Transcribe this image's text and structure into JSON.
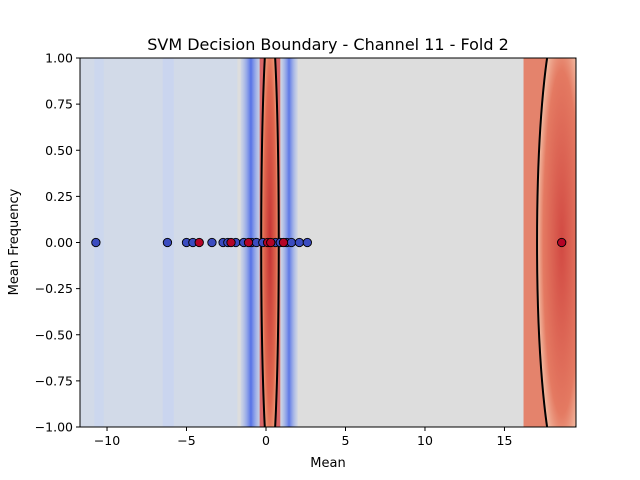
{
  "chart_data": {
    "type": "scatter",
    "title": "SVM Decision Boundary - Channel 11 - Fold 2",
    "xlabel": "Mean",
    "ylabel": "Mean Frequency",
    "xlim": [
      -11.7,
      19.5
    ],
    "ylim": [
      -1.0,
      1.0
    ],
    "x_ticks": [
      -10,
      -5,
      0,
      5,
      10,
      15
    ],
    "x_tick_labels": [
      "−10",
      "−5",
      "0",
      "5",
      "10",
      "15"
    ],
    "y_ticks": [
      -1.0,
      -0.75,
      -0.5,
      -0.25,
      0.0,
      0.25,
      0.5,
      0.75,
      1.0
    ],
    "y_tick_labels": [
      "−1.00",
      "−0.75",
      "−0.50",
      "−0.25",
      "0.00",
      "0.25",
      "0.50",
      "0.75",
      "1.00"
    ],
    "grid": false,
    "colors": {
      "class_0": "#3b4cc0",
      "class_1": "#b40426",
      "background": "#dddddd",
      "boundary": "#000000"
    },
    "decision_boundaries": [
      {
        "center_x": 0.25,
        "half_width": 0.55
      },
      {
        "center_x": 18.6,
        "half_width": 1.55
      }
    ],
    "background_bands": [
      {
        "x_from": -1.6,
        "x_to": -0.3,
        "color": "#4a6ff0",
        "opacity": 0.85
      },
      {
        "x_from": 0.9,
        "x_to": 2.0,
        "color": "#5a7ef5",
        "opacity": 0.8
      },
      {
        "x_from": -10.8,
        "x_to": -10.2,
        "color": "#c8d6f2",
        "opacity": 0.6
      },
      {
        "x_from": -6.5,
        "x_to": -5.8,
        "color": "#c4d2f4",
        "opacity": 0.6
      },
      {
        "x_from": -0.4,
        "x_to": 0.9,
        "color": "#d9595a",
        "opacity": 0.9
      },
      {
        "x_from": 16.2,
        "x_to": 19.5,
        "color": "#e4795f",
        "opacity": 0.9
      }
    ],
    "series": [
      {
        "name": "",
        "class": 0,
        "x": [
          -10.7,
          -6.2,
          -5.0,
          -4.6,
          -3.4,
          -2.7,
          -2.4,
          -1.9,
          -1.4,
          -0.9,
          -0.6,
          -0.2,
          0.6,
          0.9,
          1.3,
          1.6,
          2.1,
          2.6
        ],
        "y": [
          0,
          0,
          0,
          0,
          0,
          0,
          0,
          0,
          0,
          0,
          0,
          0,
          0,
          0,
          0,
          0,
          0,
          0
        ]
      },
      {
        "name": "",
        "class": 1,
        "x": [
          -4.2,
          -2.2,
          -1.1,
          0.1,
          0.3,
          1.1,
          18.6
        ],
        "y": [
          0,
          0,
          0,
          0,
          0,
          0,
          0
        ]
      }
    ]
  }
}
